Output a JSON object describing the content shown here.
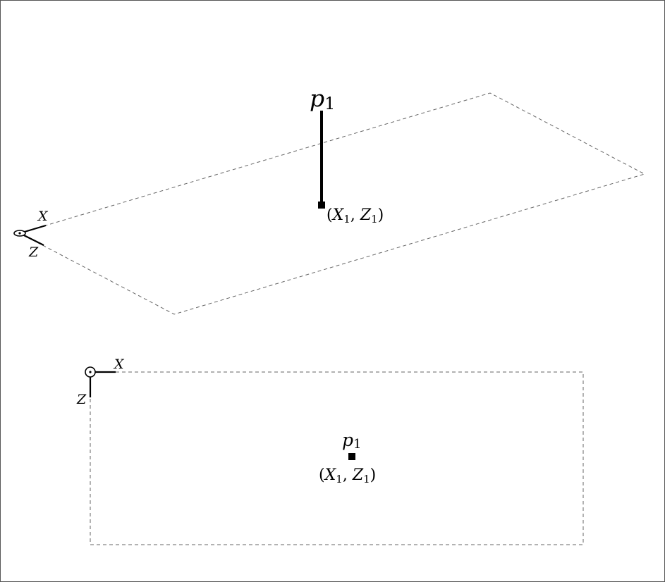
{
  "perspective": {
    "axis_x_label": "X",
    "axis_z_label": "Z",
    "point_label": "p",
    "point_label_sub": "1",
    "coord_label": {
      "open": "(",
      "x": "X",
      "x_sub": "1",
      "sep": ", ",
      "z": "Z",
      "z_sub": "1",
      "close": ")"
    }
  },
  "top_view": {
    "axis_x_label": "X",
    "axis_z_label": "Z",
    "point_label": "p",
    "point_label_sub": "1",
    "coord_label": {
      "open": "(",
      "x": "X",
      "x_sub": "1",
      "sep": ", ",
      "z": "Z",
      "z_sub": "1",
      "close": ")"
    }
  },
  "colors": {
    "ink": "#000000",
    "dashed": "#666666",
    "frame": "#555555"
  }
}
